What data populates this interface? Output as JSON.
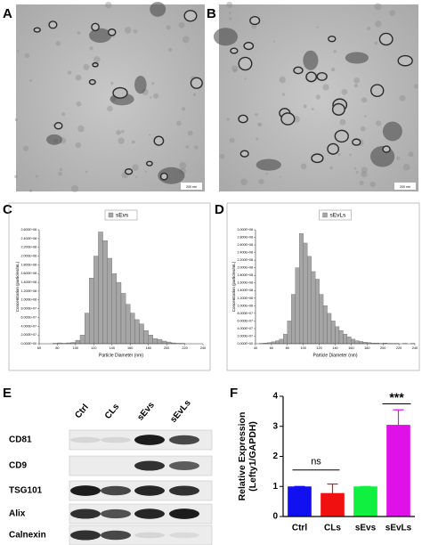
{
  "panel_labels": [
    "A",
    "B",
    "C",
    "D",
    "E",
    "F"
  ],
  "micrographs": [
    {
      "scale_bar": "200 nm"
    },
    {
      "scale_bar": "200 nm"
    }
  ],
  "blot": {
    "columns": [
      "Ctrl",
      "CLs",
      "sEvs",
      "sEvLs"
    ],
    "rows": [
      "CD81",
      "CD9",
      "TSG101",
      "Alix",
      "Calnexin"
    ]
  },
  "chart_data": [
    {
      "type": "histogram",
      "xlabel": "Particle Diameter (nm)",
      "ylabel": "Concentration (particles/mL)",
      "bins": [
        75,
        80,
        85,
        90,
        95,
        100,
        105,
        110,
        115,
        120,
        125,
        130,
        135,
        140,
        145,
        150,
        155,
        160,
        165,
        170,
        175,
        180,
        185,
        190,
        195,
        200,
        205,
        210,
        215,
        220
      ],
      "series": [
        {
          "name": "sEvs",
          "color": "#a6a6a6",
          "values": [
            1000000,
            2000000,
            1000000,
            2000000,
            3000000,
            8000000,
            20000000,
            70000000,
            150000000,
            200000000,
            255000000,
            235000000,
            195000000,
            160000000,
            140000000,
            115000000,
            90000000,
            70000000,
            55000000,
            45000000,
            30000000,
            20000000,
            12000000,
            10000000,
            6000000,
            4000000,
            2000000,
            1000000,
            1000000
          ]
        }
      ],
      "xlim": [
        60,
        240
      ],
      "xticks": [
        60,
        80,
        100,
        120,
        140,
        160,
        180,
        200,
        220,
        240
      ],
      "ylim": [
        0,
        260000000
      ],
      "yticks": [
        {
          "value": 0,
          "label": "0.000E+00"
        },
        {
          "value": 20000000,
          "label": "2.000E+07"
        },
        {
          "value": 40000000,
          "label": "4.000E+07"
        },
        {
          "value": 60000000,
          "label": "6.000E+07"
        },
        {
          "value": 80000000,
          "label": "8.000E+07"
        },
        {
          "value": 100000000,
          "label": "1.000E+08"
        },
        {
          "value": 120000000,
          "label": "1.200E+08"
        },
        {
          "value": 140000000,
          "label": "1.400E+08"
        },
        {
          "value": 160000000,
          "label": "1.600E+08"
        },
        {
          "value": 180000000,
          "label": "1.800E+08"
        },
        {
          "value": 200000000,
          "label": "2.000E+08"
        },
        {
          "value": 220000000,
          "label": "2.200E+08"
        },
        {
          "value": 240000000,
          "label": "2.400E+08"
        },
        {
          "value": 260000000,
          "label": "2.600E+08"
        }
      ]
    },
    {
      "type": "histogram",
      "xlabel": "Particle Diameter (nm)",
      "ylabel": "Concentration (particles/mL)",
      "bins": [
        45,
        50,
        55,
        60,
        65,
        70,
        75,
        80,
        85,
        90,
        95,
        100,
        105,
        110,
        115,
        120,
        125,
        130,
        135,
        140,
        145,
        150,
        155,
        160,
        165,
        170,
        175,
        180,
        185,
        190,
        195,
        200,
        205,
        210,
        215,
        220,
        225,
        230,
        235,
        240
      ],
      "series": [
        {
          "name": "sEvLs",
          "color": "#a6a6a6",
          "values": [
            1000000,
            2000000,
            3000000,
            5000000,
            8000000,
            12000000,
            25000000,
            60000000,
            130000000,
            200000000,
            290000000,
            265000000,
            230000000,
            190000000,
            170000000,
            130000000,
            100000000,
            80000000,
            60000000,
            45000000,
            35000000,
            25000000,
            18000000,
            12000000,
            8000000,
            6000000,
            4000000,
            3000000,
            2000000,
            2000000,
            1000000,
            2000000,
            1000000,
            1000000,
            1000000,
            0,
            1000000,
            0,
            1000000
          ]
        }
      ],
      "xlim": [
        40,
        240
      ],
      "xticks": [
        40,
        60,
        80,
        100,
        120,
        140,
        160,
        180,
        200,
        220,
        240
      ],
      "ylim": [
        0,
        300000000
      ],
      "yticks": [
        {
          "value": 0,
          "label": "0.000E+00"
        },
        {
          "value": 20000000,
          "label": "2.000E+07"
        },
        {
          "value": 40000000,
          "label": "4.000E+07"
        },
        {
          "value": 60000000,
          "label": "6.000E+07"
        },
        {
          "value": 80000000,
          "label": "8.000E+07"
        },
        {
          "value": 100000000,
          "label": "1.000E+08"
        },
        {
          "value": 120000000,
          "label": "1.200E+08"
        },
        {
          "value": 140000000,
          "label": "1.400E+08"
        },
        {
          "value": 160000000,
          "label": "1.600E+08"
        },
        {
          "value": 180000000,
          "label": "1.800E+08"
        },
        {
          "value": 200000000,
          "label": "2.000E+08"
        },
        {
          "value": 220000000,
          "label": "2.200E+08"
        },
        {
          "value": 240000000,
          "label": "2.400E+08"
        },
        {
          "value": 260000000,
          "label": "2.600E+08"
        },
        {
          "value": 280000000,
          "label": "2.800E+08"
        },
        {
          "value": 300000000,
          "label": "3.000E+08"
        }
      ]
    },
    {
      "type": "bar",
      "ylabel": [
        "Relative Expression",
        "(Lefty1/GAPDH)"
      ],
      "categories": [
        "Ctrl",
        "CLs",
        "sEvs",
        "sEvLs"
      ],
      "values": [
        1,
        0.78,
        1,
        3.05
      ],
      "errors": [
        0,
        0.3,
        0,
        0.5
      ],
      "colors": [
        "#1010f0",
        "#f01010",
        "#10f040",
        "#e010e8"
      ],
      "ylim": [
        0,
        4
      ],
      "yticks": [
        0,
        1,
        2,
        3,
        4
      ],
      "annotations": [
        "ns",
        "***"
      ]
    }
  ]
}
